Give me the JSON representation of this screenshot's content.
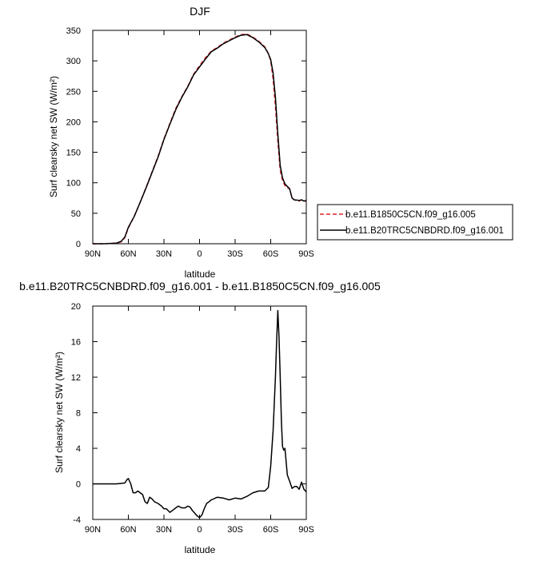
{
  "chart_data": [
    {
      "type": "line",
      "title": "DJF",
      "xlabel": "latitude",
      "ylabel": "Surf clearsky net SW (W/m²)",
      "xlim": [
        90,
        -90
      ],
      "ylim": [
        0,
        350
      ],
      "x_ticks": [
        90,
        60,
        30,
        0,
        -30,
        -60,
        -90
      ],
      "x_tick_labels": [
        "90N",
        "60N",
        "30N",
        "0",
        "30S",
        "60S",
        "90S"
      ],
      "y_ticks": [
        0,
        50,
        100,
        150,
        200,
        250,
        300,
        350
      ],
      "y_tick_labels": [
        "0",
        "50",
        "100",
        "150",
        "200",
        "250",
        "300",
        "350"
      ],
      "grid": false,
      "legend_placement": "right",
      "series": [
        {
          "name": "b.e11.B1850C5CN.f09_g16.005",
          "color": "#e0242c",
          "dash": "dashed",
          "x": [
            90,
            80,
            70,
            66,
            63,
            60,
            55,
            50,
            45,
            40,
            35,
            30,
            25,
            20,
            15,
            10,
            5,
            0,
            -5,
            -10,
            -15,
            -20,
            -25,
            -30,
            -35,
            -40,
            -45,
            -50,
            -55,
            -58,
            -60,
            -62,
            -64,
            -66,
            -68,
            -70,
            -72,
            -74,
            -76,
            -78,
            -80,
            -84,
            -86,
            -88,
            -90
          ],
          "y": [
            0,
            0,
            1,
            3,
            10,
            26,
            45,
            68,
            93,
            118,
            143,
            172,
            197,
            222,
            241,
            258,
            278,
            292,
            305,
            316,
            322,
            329,
            334,
            339,
            343,
            344,
            339,
            332,
            323,
            312,
            300,
            270,
            225,
            168,
            120,
            104,
            95,
            92,
            90,
            75,
            72,
            70,
            72,
            70,
            70
          ]
        },
        {
          "name": "b.e11.B20TRC5CNBDRD.f09_g16.001",
          "color": "#000000",
          "dash": "solid",
          "x": [
            90,
            80,
            70,
            66,
            63,
            60,
            55,
            50,
            45,
            40,
            35,
            30,
            25,
            20,
            15,
            10,
            5,
            0,
            -5,
            -10,
            -15,
            -20,
            -25,
            -30,
            -35,
            -40,
            -45,
            -50,
            -55,
            -58,
            -60,
            -62,
            -64,
            -66,
            -68,
            -70,
            -72,
            -74,
            -76,
            -78,
            -80,
            -84,
            -86,
            -88,
            -90
          ],
          "y": [
            0,
            0,
            1,
            4,
            11,
            27,
            45,
            68,
            92,
            117,
            142,
            171,
            196,
            220,
            240,
            257,
            277,
            290,
            303,
            315,
            321,
            328,
            333,
            338,
            342,
            343,
            338,
            331,
            322,
            312,
            302,
            280,
            240,
            180,
            128,
            108,
            98,
            94,
            90,
            75,
            72,
            71,
            72,
            70,
            71
          ]
        }
      ]
    },
    {
      "type": "line",
      "title": "b.e11.B20TRC5CNBDRD.f09_g16.001 - b.e11.B1850C5CN.f09_g16.005",
      "xlabel": "latitude",
      "ylabel": "Surf clearsky net SW (W/m²)",
      "xlim": [
        90,
        -90
      ],
      "ylim": [
        -4,
        20
      ],
      "x_ticks": [
        90,
        60,
        30,
        0,
        -30,
        -60,
        -90
      ],
      "x_tick_labels": [
        "90N",
        "60N",
        "30N",
        "0",
        "30S",
        "60S",
        "90S"
      ],
      "y_ticks": [
        -4,
        0,
        4,
        8,
        12,
        16,
        20
      ],
      "y_tick_labels": [
        "-4",
        "0",
        "4",
        "8",
        "12",
        "16",
        "20"
      ],
      "grid": false,
      "series": [
        {
          "color": "#000000",
          "dash": "solid",
          "x": [
            90,
            80,
            70,
            63,
            61,
            60,
            58,
            56,
            54,
            52,
            50,
            48,
            46,
            44,
            42,
            40,
            38,
            35,
            32,
            30,
            28,
            25,
            22,
            20,
            18,
            15,
            12,
            10,
            8,
            6,
            4,
            2,
            0,
            -2,
            -4,
            -6,
            -8,
            -10,
            -15,
            -20,
            -25,
            -30,
            -35,
            -40,
            -45,
            -50,
            -55,
            -58,
            -60,
            -62,
            -64,
            -65,
            -66,
            -67,
            -68,
            -69,
            -70,
            -71,
            -72,
            -73,
            -74,
            -76,
            -78,
            -80,
            -82,
            -84,
            -86,
            -88,
            -90
          ],
          "y": [
            0,
            0,
            0,
            0.1,
            0.5,
            0.6,
            0.0,
            -1.0,
            -1.0,
            -0.8,
            -1.0,
            -1.2,
            -2.0,
            -2.2,
            -1.5,
            -1.7,
            -2.0,
            -2.2,
            -2.5,
            -2.8,
            -2.8,
            -3.2,
            -2.9,
            -2.7,
            -2.5,
            -2.7,
            -2.7,
            -2.5,
            -2.6,
            -3.0,
            -3.3,
            -3.6,
            -3.8,
            -3.5,
            -2.8,
            -2.2,
            -2.0,
            -1.8,
            -1.5,
            -1.6,
            -1.8,
            -1.6,
            -1.7,
            -1.4,
            -1.0,
            -0.8,
            -0.8,
            -0.4,
            2.0,
            6.0,
            12.0,
            16.0,
            19.5,
            16.5,
            12.0,
            7.0,
            4.2,
            3.8,
            4.0,
            2.5,
            1.0,
            0.3,
            -0.5,
            -0.3,
            -0.3,
            -0.6,
            0.2,
            -0.6,
            -0.9
          ]
        }
      ]
    }
  ]
}
